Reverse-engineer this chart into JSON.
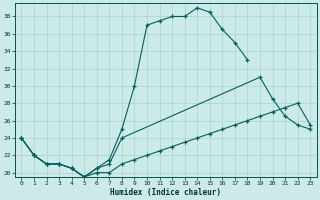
{
  "bg_color": "#cceae7",
  "grid_color": "#aad4d0",
  "line_color": "#006060",
  "xlabel": "Humidex (Indice chaleur)",
  "xlim": [
    -0.5,
    23.5
  ],
  "ylim": [
    19.5,
    39.5
  ],
  "yticks": [
    20,
    22,
    24,
    26,
    28,
    30,
    32,
    34,
    36,
    38
  ],
  "xticks": [
    0,
    1,
    2,
    3,
    4,
    5,
    6,
    7,
    8,
    9,
    10,
    11,
    12,
    13,
    14,
    15,
    16,
    17,
    18,
    19,
    20,
    21,
    22,
    23
  ],
  "line1_x": [
    0,
    1,
    2,
    3,
    4,
    5,
    6,
    7,
    8,
    9,
    10,
    11,
    12,
    13,
    14,
    15,
    16,
    17,
    18
  ],
  "line1_y": [
    24,
    22,
    21,
    21,
    20.5,
    19.5,
    20.5,
    21.5,
    25,
    30,
    37,
    37.5,
    38,
    38,
    39,
    38.5,
    36.5,
    35,
    33
  ],
  "line2_x": [
    0,
    1,
    2,
    3,
    4,
    5,
    6,
    7,
    8,
    19,
    20,
    21,
    22,
    23
  ],
  "line2_y": [
    24,
    22,
    21,
    21,
    20.5,
    19.5,
    20.5,
    21,
    24,
    31,
    28.5,
    26.5,
    25.5,
    25
  ],
  "line3_x": [
    0,
    1,
    2,
    3,
    4,
    5,
    6,
    7,
    8,
    9,
    10,
    11,
    12,
    13,
    14,
    15,
    16,
    17,
    18,
    19,
    20,
    21,
    22,
    23
  ],
  "line3_y": [
    24,
    22,
    21,
    21,
    20.5,
    19.5,
    20,
    20,
    21,
    21.5,
    22,
    22.5,
    23,
    23.5,
    24,
    24.5,
    25,
    25.5,
    26,
    26.5,
    27,
    27.5,
    28,
    25.5
  ]
}
